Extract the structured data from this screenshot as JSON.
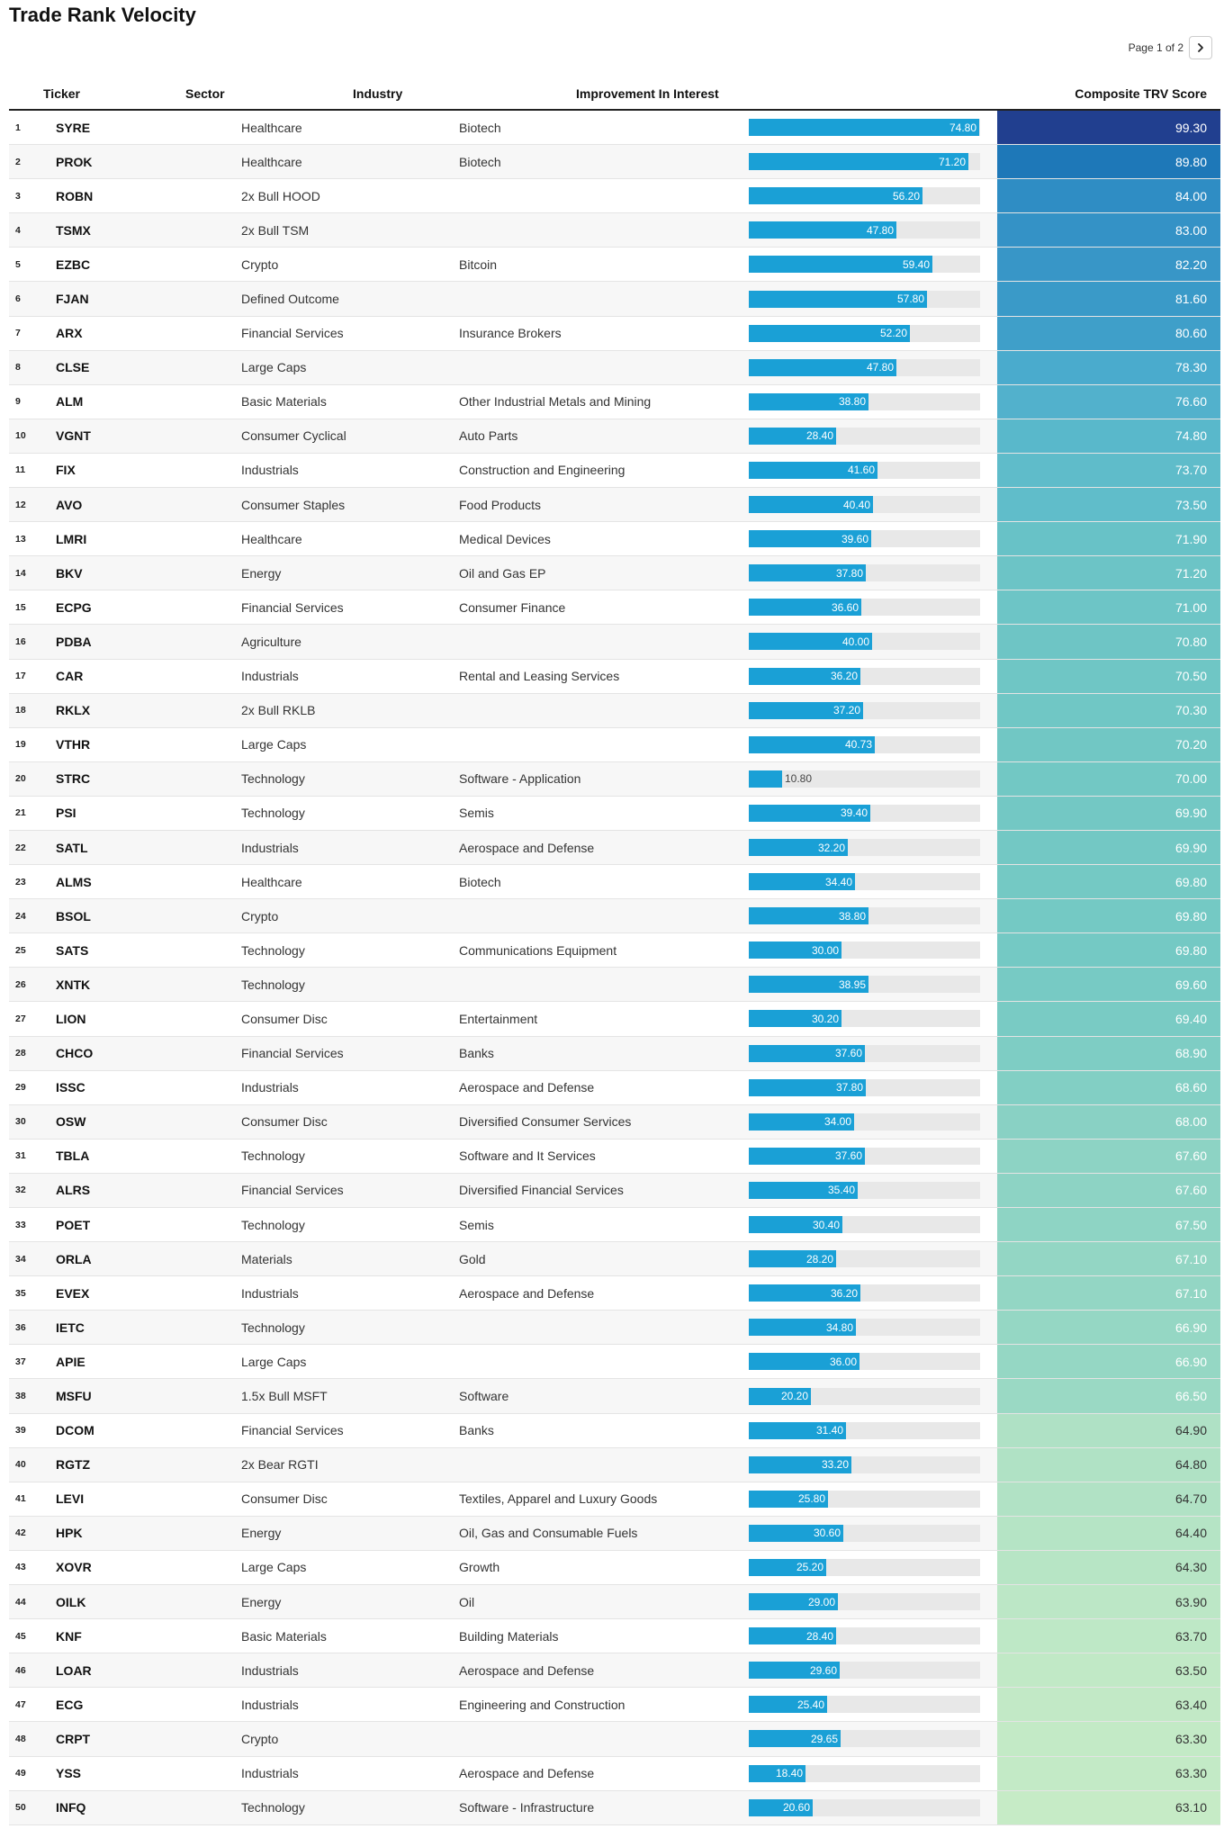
{
  "title": "Trade Rank Velocity",
  "pager": {
    "text": "Page 1 of 2",
    "next_icon": "chevron-right-icon"
  },
  "columns": {
    "ticker": "Ticker",
    "sector": "Sector",
    "industry": "Industry",
    "improvement": "Improvement In Interest",
    "score": "Composite TRV Score"
  },
  "colors": {
    "bar_fill": "#1aa0d6",
    "bar_track": "#e8e8e8",
    "score_high": "#213f8f",
    "score_low": "#c6ebc6"
  },
  "bar_max": 75,
  "rows": [
    {
      "rank": "1",
      "ticker": "SYRE",
      "sector": "Healthcare",
      "industry": "Biotech",
      "improvement": "74.80",
      "score": "99.30"
    },
    {
      "rank": "2",
      "ticker": "PROK",
      "sector": "Healthcare",
      "industry": "Biotech",
      "improvement": "71.20",
      "score": "89.80"
    },
    {
      "rank": "3",
      "ticker": "ROBN",
      "sector": "2x Bull HOOD",
      "industry": "",
      "improvement": "56.20",
      "score": "84.00"
    },
    {
      "rank": "4",
      "ticker": "TSMX",
      "sector": "2x Bull TSM",
      "industry": "",
      "improvement": "47.80",
      "score": "83.00"
    },
    {
      "rank": "5",
      "ticker": "EZBC",
      "sector": "Crypto",
      "industry": "Bitcoin",
      "improvement": "59.40",
      "score": "82.20"
    },
    {
      "rank": "6",
      "ticker": "FJAN",
      "sector": "Defined Outcome",
      "industry": "",
      "improvement": "57.80",
      "score": "81.60"
    },
    {
      "rank": "7",
      "ticker": "ARX",
      "sector": "Financial Services",
      "industry": "Insurance Brokers",
      "improvement": "52.20",
      "score": "80.60"
    },
    {
      "rank": "8",
      "ticker": "CLSE",
      "sector": "Large Caps",
      "industry": "",
      "improvement": "47.80",
      "score": "78.30"
    },
    {
      "rank": "9",
      "ticker": "ALM",
      "sector": "Basic Materials",
      "industry": "Other Industrial Metals and Mining",
      "improvement": "38.80",
      "score": "76.60"
    },
    {
      "rank": "10",
      "ticker": "VGNT",
      "sector": "Consumer Cyclical",
      "industry": "Auto Parts",
      "improvement": "28.40",
      "score": "74.80"
    },
    {
      "rank": "11",
      "ticker": "FIX",
      "sector": "Industrials",
      "industry": "Construction and Engineering",
      "improvement": "41.60",
      "score": "73.70"
    },
    {
      "rank": "12",
      "ticker": "AVO",
      "sector": "Consumer Staples",
      "industry": "Food Products",
      "improvement": "40.40",
      "score": "73.50"
    },
    {
      "rank": "13",
      "ticker": "LMRI",
      "sector": "Healthcare",
      "industry": "Medical Devices",
      "improvement": "39.60",
      "score": "71.90"
    },
    {
      "rank": "14",
      "ticker": "BKV",
      "sector": "Energy",
      "industry": "Oil and Gas EP",
      "improvement": "37.80",
      "score": "71.20"
    },
    {
      "rank": "15",
      "ticker": "ECPG",
      "sector": "Financial Services",
      "industry": "Consumer Finance",
      "improvement": "36.60",
      "score": "71.00"
    },
    {
      "rank": "16",
      "ticker": "PDBA",
      "sector": "Agriculture",
      "industry": "",
      "improvement": "40.00",
      "score": "70.80"
    },
    {
      "rank": "17",
      "ticker": "CAR",
      "sector": "Industrials",
      "industry": "Rental and Leasing Services",
      "improvement": "36.20",
      "score": "70.50"
    },
    {
      "rank": "18",
      "ticker": "RKLX",
      "sector": "2x Bull RKLB",
      "industry": "",
      "improvement": "37.20",
      "score": "70.30"
    },
    {
      "rank": "19",
      "ticker": "VTHR",
      "sector": "Large Caps",
      "industry": "",
      "improvement": "40.73",
      "score": "70.20"
    },
    {
      "rank": "20",
      "ticker": "STRC",
      "sector": "Technology",
      "industry": "Software - Application",
      "improvement": "10.80",
      "score": "70.00"
    },
    {
      "rank": "21",
      "ticker": "PSI",
      "sector": "Technology",
      "industry": "Semis",
      "improvement": "39.40",
      "score": "69.90"
    },
    {
      "rank": "22",
      "ticker": "SATL",
      "sector": "Industrials",
      "industry": "Aerospace and Defense",
      "improvement": "32.20",
      "score": "69.90"
    },
    {
      "rank": "23",
      "ticker": "ALMS",
      "sector": "Healthcare",
      "industry": "Biotech",
      "improvement": "34.40",
      "score": "69.80"
    },
    {
      "rank": "24",
      "ticker": "BSOL",
      "sector": "Crypto",
      "industry": "",
      "improvement": "38.80",
      "score": "69.80"
    },
    {
      "rank": "25",
      "ticker": "SATS",
      "sector": "Technology",
      "industry": "Communications Equipment",
      "improvement": "30.00",
      "score": "69.80"
    },
    {
      "rank": "26",
      "ticker": "XNTK",
      "sector": "Technology",
      "industry": "",
      "improvement": "38.95",
      "score": "69.60"
    },
    {
      "rank": "27",
      "ticker": "LION",
      "sector": "Consumer Disc",
      "industry": "Entertainment",
      "improvement": "30.20",
      "score": "69.40"
    },
    {
      "rank": "28",
      "ticker": "CHCO",
      "sector": "Financial Services",
      "industry": "Banks",
      "improvement": "37.60",
      "score": "68.90"
    },
    {
      "rank": "29",
      "ticker": "ISSC",
      "sector": "Industrials",
      "industry": "Aerospace and Defense",
      "improvement": "37.80",
      "score": "68.60"
    },
    {
      "rank": "30",
      "ticker": "OSW",
      "sector": "Consumer Disc",
      "industry": "Diversified Consumer Services",
      "improvement": "34.00",
      "score": "68.00"
    },
    {
      "rank": "31",
      "ticker": "TBLA",
      "sector": "Technology",
      "industry": "Software and It Services",
      "improvement": "37.60",
      "score": "67.60"
    },
    {
      "rank": "32",
      "ticker": "ALRS",
      "sector": "Financial Services",
      "industry": "Diversified Financial Services",
      "improvement": "35.40",
      "score": "67.60"
    },
    {
      "rank": "33",
      "ticker": "POET",
      "sector": "Technology",
      "industry": "Semis",
      "improvement": "30.40",
      "score": "67.50"
    },
    {
      "rank": "34",
      "ticker": "ORLA",
      "sector": "Materials",
      "industry": "Gold",
      "improvement": "28.20",
      "score": "67.10"
    },
    {
      "rank": "35",
      "ticker": "EVEX",
      "sector": "Industrials",
      "industry": "Aerospace and Defense",
      "improvement": "36.20",
      "score": "67.10"
    },
    {
      "rank": "36",
      "ticker": "IETC",
      "sector": "Technology",
      "industry": "",
      "improvement": "34.80",
      "score": "66.90"
    },
    {
      "rank": "37",
      "ticker": "APIE",
      "sector": "Large Caps",
      "industry": "",
      "improvement": "36.00",
      "score": "66.90"
    },
    {
      "rank": "38",
      "ticker": "MSFU",
      "sector": "1.5x Bull MSFT",
      "industry": "Software",
      "improvement": "20.20",
      "score": "66.50"
    },
    {
      "rank": "39",
      "ticker": "DCOM",
      "sector": "Financial Services",
      "industry": "Banks",
      "improvement": "31.40",
      "score": "64.90"
    },
    {
      "rank": "40",
      "ticker": "RGTZ",
      "sector": "2x Bear RGTI",
      "industry": "",
      "improvement": "33.20",
      "score": "64.80"
    },
    {
      "rank": "41",
      "ticker": "LEVI",
      "sector": "Consumer Disc",
      "industry": "Textiles, Apparel and Luxury Goods",
      "improvement": "25.80",
      "score": "64.70"
    },
    {
      "rank": "42",
      "ticker": "HPK",
      "sector": "Energy",
      "industry": "Oil, Gas and Consumable Fuels",
      "improvement": "30.60",
      "score": "64.40"
    },
    {
      "rank": "43",
      "ticker": "XOVR",
      "sector": "Large Caps",
      "industry": "Growth",
      "improvement": "25.20",
      "score": "64.30"
    },
    {
      "rank": "44",
      "ticker": "OILK",
      "sector": "Energy",
      "industry": "Oil",
      "improvement": "29.00",
      "score": "63.90"
    },
    {
      "rank": "45",
      "ticker": "KNF",
      "sector": "Basic Materials",
      "industry": "Building Materials",
      "improvement": "28.40",
      "score": "63.70"
    },
    {
      "rank": "46",
      "ticker": "LOAR",
      "sector": "Industrials",
      "industry": "Aerospace and Defense",
      "improvement": "29.60",
      "score": "63.50"
    },
    {
      "rank": "47",
      "ticker": "ECG",
      "sector": "Industrials",
      "industry": "Engineering and Construction",
      "improvement": "25.40",
      "score": "63.40"
    },
    {
      "rank": "48",
      "ticker": "CRPT",
      "sector": "Crypto",
      "industry": "",
      "improvement": "29.65",
      "score": "63.30"
    },
    {
      "rank": "49",
      "ticker": "YSS",
      "sector": "Industrials",
      "industry": "Aerospace and Defense",
      "improvement": "18.40",
      "score": "63.30"
    },
    {
      "rank": "50",
      "ticker": "INFQ",
      "sector": "Technology",
      "industry": "Software - Infrastructure",
      "improvement": "20.60",
      "score": "63.10"
    }
  ]
}
